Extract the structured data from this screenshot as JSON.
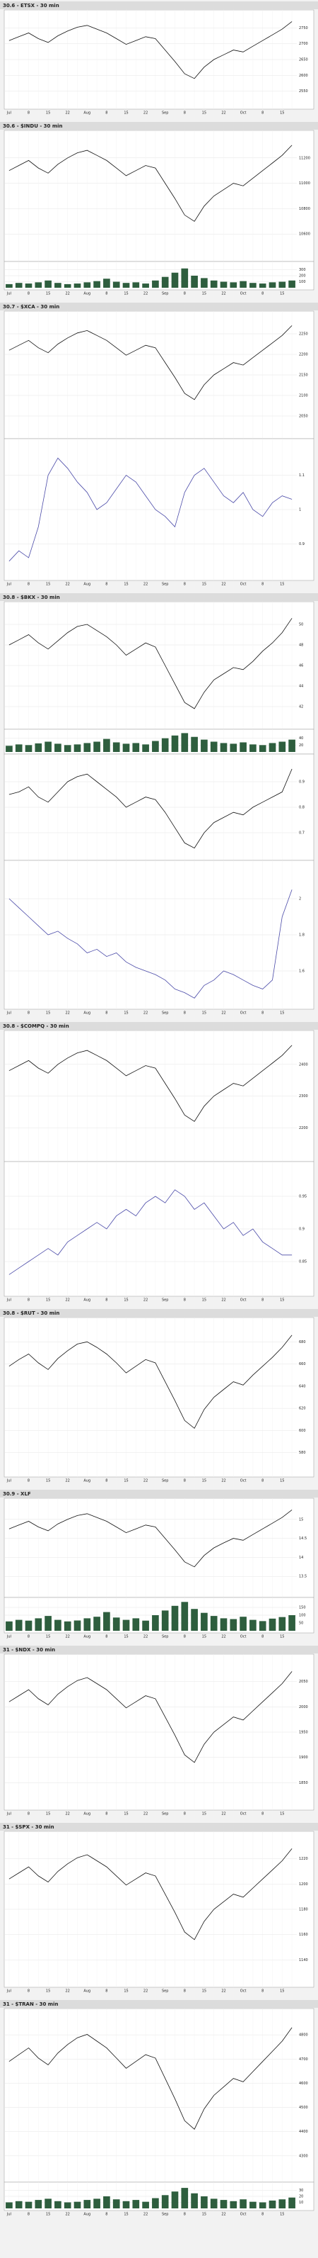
{
  "chart_data": [
    {
      "title": "30.6 - ETSX - 30 min",
      "categories": [
        "Jul",
        null,
        "8",
        null,
        "15",
        null,
        "22",
        null,
        "Aug",
        null,
        "8",
        null,
        "15",
        null,
        "22",
        null,
        "Sep",
        null,
        "8",
        null,
        "15",
        null,
        "22",
        null,
        "Oct",
        null,
        "8",
        null,
        "15",
        null
      ],
      "panels": [
        {
          "type": "line",
          "color": "#111111",
          "ylim": [
            2500,
            2800
          ],
          "yticks": [
            2550,
            2600,
            2650,
            2700,
            2750
          ],
          "values": [
            2710,
            2722,
            2734,
            2716,
            2704,
            2725,
            2740,
            2752,
            2758,
            2746,
            2734,
            2716,
            2698,
            2710,
            2722,
            2716,
            2680,
            2644,
            2605,
            2590,
            2626,
            2650,
            2665,
            2680,
            2674,
            2692,
            2710,
            2728,
            2746,
            2770
          ]
        }
      ]
    },
    {
      "title": "30.6 - $INDU - 30 min",
      "categories": [
        "Jul",
        null,
        "8",
        null,
        "15",
        null,
        "22",
        null,
        "Aug",
        null,
        "8",
        null,
        "15",
        null,
        "22",
        null,
        "Sep",
        null,
        "8",
        null,
        "15",
        null,
        "22",
        null,
        "Oct",
        null,
        "8",
        null,
        "15",
        null
      ],
      "panels": [
        {
          "type": "line",
          "color": "#111111",
          "ylim": [
            10400,
            11400
          ],
          "yticks": [
            10600,
            10800,
            11000,
            11200
          ],
          "values": [
            11100,
            11140,
            11180,
            11120,
            11080,
            11150,
            11200,
            11240,
            11260,
            11220,
            11180,
            11120,
            11060,
            11100,
            11140,
            11120,
            11000,
            10880,
            10750,
            10700,
            10820,
            10900,
            10950,
            11000,
            10980,
            11040,
            11100,
            11160,
            11220,
            11300
          ]
        },
        {
          "type": "bar",
          "color": "#2e5e3e",
          "ylim": [
            0,
            400
          ],
          "yticks": [
            100,
            200,
            300
          ],
          "values": [
            60,
            80,
            70,
            90,
            120,
            80,
            60,
            70,
            90,
            110,
            150,
            100,
            80,
            90,
            70,
            120,
            180,
            250,
            320,
            200,
            160,
            120,
            100,
            90,
            110,
            80,
            70,
            90,
            100,
            120
          ]
        }
      ]
    },
    {
      "title": "30.7 - $XCA - 30 min",
      "categories": [
        "Jul",
        null,
        "8",
        null,
        "15",
        null,
        "22",
        null,
        "Aug",
        null,
        "8",
        null,
        "15",
        null,
        "22",
        null,
        "Sep",
        null,
        "8",
        null,
        "15",
        null,
        "22",
        null,
        "Oct",
        null,
        "8",
        null,
        "15",
        null
      ],
      "panels": [
        {
          "type": "line",
          "color": "#111111",
          "ylim": [
            2000,
            2300
          ],
          "yticks": [
            2050,
            2100,
            2150,
            2200,
            2250
          ],
          "values": [
            2210,
            2222,
            2234,
            2216,
            2204,
            2225,
            2240,
            2252,
            2258,
            2246,
            2234,
            2216,
            2198,
            2210,
            2222,
            2216,
            2180,
            2144,
            2105,
            2090,
            2126,
            2150,
            2165,
            2180,
            2174,
            2192,
            2210,
            2228,
            2246,
            2270
          ]
        },
        {
          "type": "line",
          "color": "#4a4aa8",
          "ylim": [
            0.8,
            1.2
          ],
          "yticks": [
            0.9,
            1,
            1.1
          ],
          "values": [
            0.85,
            0.88,
            0.86,
            0.95,
            1.1,
            1.15,
            1.12,
            1.08,
            1.05,
            1.0,
            1.02,
            1.06,
            1.1,
            1.08,
            1.04,
            1.0,
            0.98,
            0.95,
            1.05,
            1.1,
            1.12,
            1.08,
            1.04,
            1.02,
            1.05,
            1.0,
            0.98,
            1.02,
            1.04,
            1.03
          ]
        }
      ]
    },
    {
      "title": "30.8 - $BKX - 30 min",
      "categories": [
        "Jul",
        null,
        "8",
        null,
        "15",
        null,
        "22",
        null,
        "Aug",
        null,
        "8",
        null,
        "15",
        null,
        "22",
        null,
        "Sep",
        null,
        "8",
        null,
        "15",
        null,
        "22",
        null,
        "Oct",
        null,
        "8",
        null,
        "15",
        null
      ],
      "panels": [
        {
          "type": "line",
          "color": "#111111",
          "ylim": [
            40,
            52
          ],
          "yticks": [
            42,
            44,
            46,
            48,
            50
          ],
          "values": [
            48,
            48.5,
            49,
            48.2,
            47.6,
            48.4,
            49.2,
            49.8,
            50,
            49.4,
            48.8,
            48,
            47,
            47.6,
            48.2,
            47.8,
            46,
            44.2,
            42.4,
            41.8,
            43.4,
            44.6,
            45.2,
            45.8,
            45.6,
            46.4,
            47.4,
            48.2,
            49.2,
            50.6
          ]
        },
        {
          "type": "bar",
          "color": "#2e5e3e",
          "ylim": [
            0,
            60
          ],
          "yticks": [
            20,
            40
          ],
          "values": [
            18,
            22,
            20,
            25,
            30,
            24,
            20,
            22,
            26,
            30,
            38,
            28,
            24,
            26,
            22,
            32,
            40,
            48,
            55,
            44,
            36,
            30,
            26,
            24,
            28,
            22,
            20,
            26,
            30,
            36
          ]
        },
        {
          "type": "line",
          "color": "#111111",
          "ylim": [
            0.6,
            1
          ],
          "yticks": [
            0.7,
            0.8,
            0.9
          ],
          "values": [
            0.85,
            0.86,
            0.88,
            0.84,
            0.82,
            0.86,
            0.9,
            0.92,
            0.93,
            0.9,
            0.87,
            0.84,
            0.8,
            0.82,
            0.84,
            0.83,
            0.78,
            0.72,
            0.66,
            0.64,
            0.7,
            0.74,
            0.76,
            0.78,
            0.77,
            0.8,
            0.82,
            0.84,
            0.86,
            0.95
          ]
        },
        {
          "type": "line",
          "color": "#4a4aa8",
          "ylim": [
            1.4,
            2.2
          ],
          "yticks": [
            1.6,
            1.8,
            2
          ],
          "values": [
            2.0,
            1.95,
            1.9,
            1.85,
            1.8,
            1.82,
            1.78,
            1.75,
            1.7,
            1.72,
            1.68,
            1.7,
            1.65,
            1.62,
            1.6,
            1.58,
            1.55,
            1.5,
            1.48,
            1.45,
            1.52,
            1.55,
            1.6,
            1.58,
            1.55,
            1.52,
            1.5,
            1.55,
            1.9,
            2.05
          ]
        }
      ]
    },
    {
      "title": "30.8 - $COMPQ - 30 min",
      "categories": [
        "Jul",
        null,
        "8",
        null,
        "15",
        null,
        "22",
        null,
        "Aug",
        null,
        "8",
        null,
        "15",
        null,
        "22",
        null,
        "Sep",
        null,
        "8",
        null,
        "15",
        null,
        "22",
        null,
        "Oct",
        null,
        "8",
        null,
        "15",
        null
      ],
      "panels": [
        {
          "type": "line",
          "color": "#111111",
          "ylim": [
            2100,
            2500
          ],
          "yticks": [
            2200,
            2300,
            2400
          ],
          "values": [
            2380,
            2396,
            2412,
            2388,
            2372,
            2400,
            2420,
            2436,
            2444,
            2428,
            2412,
            2388,
            2364,
            2380,
            2396,
            2388,
            2340,
            2292,
            2240,
            2220,
            2268,
            2300,
            2320,
            2340,
            2332,
            2356,
            2380,
            2404,
            2428,
            2460
          ]
        },
        {
          "type": "line",
          "color": "#4a4aa8",
          "ylim": [
            0.8,
            1
          ],
          "yticks": [
            0.85,
            0.9,
            0.95
          ],
          "values": [
            0.83,
            0.84,
            0.85,
            0.86,
            0.87,
            0.86,
            0.88,
            0.89,
            0.9,
            0.91,
            0.9,
            0.92,
            0.93,
            0.92,
            0.94,
            0.95,
            0.94,
            0.96,
            0.95,
            0.93,
            0.94,
            0.92,
            0.9,
            0.91,
            0.89,
            0.9,
            0.88,
            0.87,
            0.86,
            0.86
          ]
        }
      ]
    },
    {
      "title": "30.8 - $RUT - 30 min",
      "categories": [
        "Jul",
        null,
        "8",
        null,
        "15",
        null,
        "22",
        null,
        "Aug",
        null,
        "8",
        null,
        "15",
        null,
        "22",
        null,
        "Sep",
        null,
        "8",
        null,
        "15",
        null,
        "22",
        null,
        "Oct",
        null,
        "8",
        null,
        "15",
        null
      ],
      "panels": [
        {
          "type": "line",
          "color": "#111111",
          "ylim": [
            560,
            700
          ],
          "yticks": [
            580,
            600,
            620,
            640,
            660,
            680
          ],
          "values": [
            658,
            664,
            669,
            661,
            655,
            665,
            672,
            678,
            680,
            675,
            669,
            661,
            652,
            658,
            664,
            661,
            644,
            627,
            609,
            602,
            619,
            630,
            637,
            644,
            641,
            650,
            658,
            666,
            675,
            686
          ]
        }
      ]
    },
    {
      "title": "30.9 - XLF",
      "categories": [
        "Jul",
        null,
        "8",
        null,
        "15",
        null,
        "22",
        null,
        "Aug",
        null,
        "8",
        null,
        "15",
        null,
        "22",
        null,
        "Sep",
        null,
        "8",
        null,
        "15",
        null,
        "22",
        null,
        "Oct",
        null,
        "8",
        null,
        "15",
        null
      ],
      "panels": [
        {
          "type": "line",
          "color": "#111111",
          "ylim": [
            13,
            15.5
          ],
          "yticks": [
            13.5,
            14,
            14.5,
            15
          ],
          "values": [
            14.75,
            14.85,
            14.95,
            14.8,
            14.7,
            14.88,
            15,
            15.1,
            15.15,
            15.05,
            14.95,
            14.8,
            14.65,
            14.75,
            14.85,
            14.8,
            14.5,
            14.2,
            13.88,
            13.75,
            14.05,
            14.25,
            14.38,
            14.5,
            14.45,
            14.6,
            14.75,
            14.9,
            15.05,
            15.25
          ]
        },
        {
          "type": "bar",
          "color": "#2e5e3e",
          "ylim": [
            0,
            200
          ],
          "yticks": [
            50,
            100,
            150
          ],
          "values": [
            60,
            70,
            65,
            80,
            95,
            70,
            60,
            66,
            80,
            90,
            120,
            85,
            70,
            80,
            65,
            100,
            130,
            160,
            185,
            140,
            115,
            95,
            80,
            75,
            90,
            70,
            62,
            78,
            88,
            100
          ]
        }
      ]
    },
    {
      "title": "31 - $NDX - 30 min",
      "categories": [
        "Jul",
        null,
        "8",
        null,
        "15",
        null,
        "22",
        null,
        "Aug",
        null,
        "8",
        null,
        "15",
        null,
        "22",
        null,
        "Sep",
        null,
        "8",
        null,
        "15",
        null,
        "22",
        null,
        "Oct",
        null,
        "8",
        null,
        "15",
        null
      ],
      "panels": [
        {
          "type": "line",
          "color": "#111111",
          "ylim": [
            1800,
            2100
          ],
          "yticks": [
            1850,
            1900,
            1950,
            2000,
            2050
          ],
          "values": [
            2010,
            2022,
            2034,
            2016,
            2004,
            2025,
            2040,
            2052,
            2058,
            2046,
            2034,
            2016,
            1998,
            2010,
            2022,
            2016,
            1980,
            1944,
            1905,
            1890,
            1926,
            1950,
            1965,
            1980,
            1974,
            1992,
            2010,
            2028,
            2046,
            2070
          ]
        }
      ]
    },
    {
      "title": "31 - $SPX - 30 min",
      "categories": [
        "Jul",
        null,
        "8",
        null,
        "15",
        null,
        "22",
        null,
        "Aug",
        null,
        "8",
        null,
        "15",
        null,
        "22",
        null,
        "Sep",
        null,
        "8",
        null,
        "15",
        null,
        "22",
        null,
        "Oct",
        null,
        "8",
        null,
        "15",
        null
      ],
      "panels": [
        {
          "type": "line",
          "color": "#111111",
          "ylim": [
            1120,
            1240
          ],
          "yticks": [
            1140,
            1160,
            1180,
            1200,
            1220
          ],
          "values": [
            1204,
            1208.8,
            1213.6,
            1206.4,
            1201.6,
            1210,
            1216,
            1220.8,
            1223.2,
            1218.4,
            1213.6,
            1206.4,
            1199.2,
            1204,
            1208.8,
            1206.4,
            1192,
            1177.6,
            1162,
            1156,
            1170.4,
            1180,
            1186,
            1192,
            1189.6,
            1196.8,
            1204,
            1211.2,
            1218.4,
            1228
          ]
        }
      ]
    },
    {
      "title": "31 - $TRAN - 30 min",
      "categories": [
        "Jul",
        null,
        "8",
        null,
        "15",
        null,
        "22",
        null,
        "Aug",
        null,
        "8",
        null,
        "15",
        null,
        "22",
        null,
        "Sep",
        null,
        "8",
        null,
        "15",
        null,
        "22",
        null,
        "Oct",
        null,
        "8",
        null,
        "15",
        null
      ],
      "panels": [
        {
          "type": "line",
          "color": "#111111",
          "ylim": [
            4200,
            4900
          ],
          "yticks": [
            4300,
            4400,
            4500,
            4600,
            4700,
            4800
          ],
          "values": [
            4690,
            4718,
            4746,
            4704,
            4676,
            4725,
            4760,
            4788,
            4802,
            4774,
            4746,
            4704,
            4662,
            4690,
            4718,
            4704,
            4620,
            4536,
            4445,
            4410,
            4494,
            4550,
            4585,
            4620,
            4606,
            4648,
            4690,
            4732,
            4774,
            4830
          ]
        },
        {
          "type": "bar",
          "color": "#2e5e3e",
          "ylim": [
            0,
            40
          ],
          "yticks": [
            10,
            20,
            30
          ],
          "values": [
            10,
            12,
            11,
            14,
            16,
            12,
            10,
            11,
            14,
            16,
            20,
            15,
            12,
            14,
            11,
            17,
            22,
            28,
            34,
            25,
            20,
            16,
            14,
            12,
            15,
            11,
            10,
            13,
            15,
            18
          ]
        }
      ]
    }
  ]
}
